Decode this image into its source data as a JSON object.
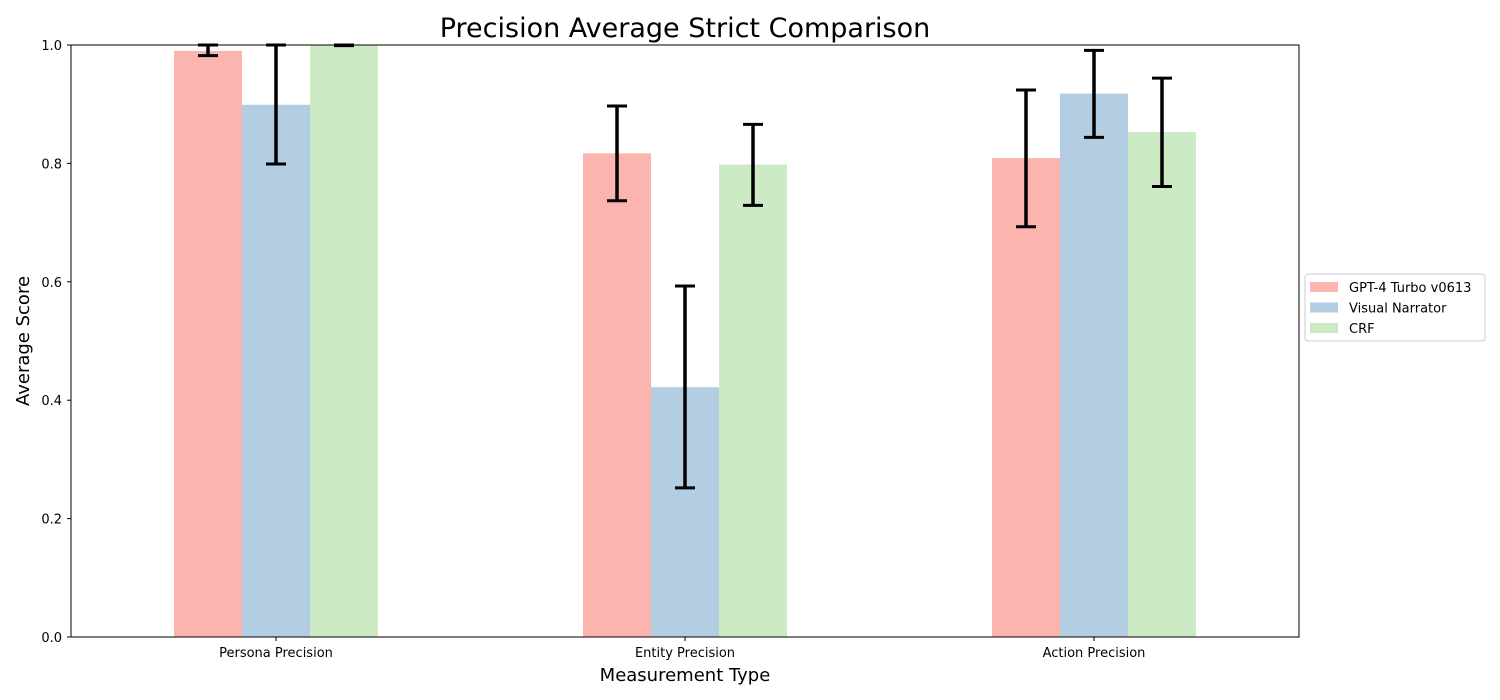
{
  "chart_data": {
    "type": "bar",
    "title": "Precision Average Strict Comparison",
    "xlabel": "Measurement Type",
    "ylabel": "Average Score",
    "categories": [
      "Persona Precision",
      "Entity Precision",
      "Action Precision"
    ],
    "ylim": [
      0,
      1.0
    ],
    "yticks": [
      "0.0",
      "0.2",
      "0.4",
      "0.6",
      "0.8",
      "1.0"
    ],
    "series": [
      {
        "name": "GPT-4 Turbo v0613",
        "color": "#fbb4ae",
        "values": [
          0.99,
          0.817,
          0.809
        ],
        "err_low": [
          0.982,
          0.737,
          0.693
        ],
        "err_high": [
          1.0,
          0.897,
          0.924
        ]
      },
      {
        "name": "Visual Narrator",
        "color": "#b3cde3",
        "values": [
          0.899,
          0.422,
          0.918
        ],
        "err_low": [
          0.799,
          0.252,
          0.844
        ],
        "err_high": [
          1.0,
          0.593,
          0.991
        ]
      },
      {
        "name": "CRF",
        "color": "#ccebc5",
        "values": [
          1.0,
          0.798,
          0.853
        ],
        "err_low": [
          0.999,
          0.729,
          0.761
        ],
        "err_high": [
          1.0,
          0.866,
          0.944
        ]
      }
    ],
    "grid": false,
    "legend_position": "right"
  }
}
